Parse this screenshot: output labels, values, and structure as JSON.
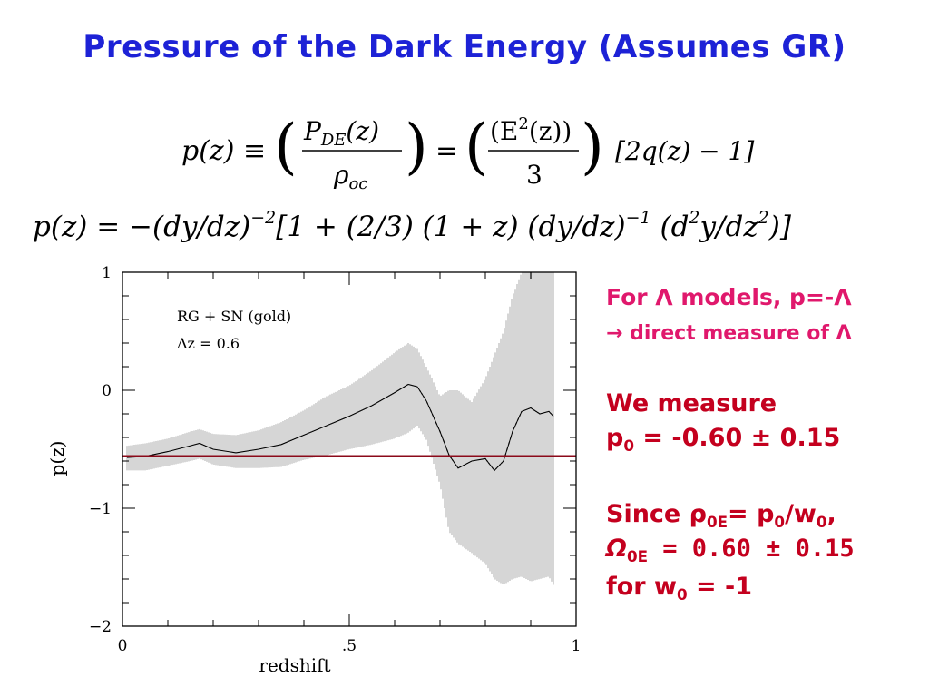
{
  "title": "Pressure of the Dark Energy  (Assumes GR)",
  "equations": {
    "eq1": {
      "lhs": "p(z) ≡",
      "frac1_num": "P",
      "frac1_num_sub": "DE",
      "frac1_num_tail": "(z)",
      "frac1_den": "ρ",
      "frac1_den_sub": "oc",
      "eq": "=",
      "frac2_num": "(E",
      "frac2_num_sup": "2",
      "frac2_num_tail": "(z))",
      "frac2_den": "3",
      "tail": "[2q(z) − 1]"
    },
    "eq2": {
      "part1": "p(z) = −(dy/dz)",
      "sup1": "−2",
      "part2": "[1 + (2/3)  (1 + z)  (dy/dz)",
      "sup2": "−1",
      "part3": "  (d",
      "sup3": "2",
      "part4": "y/dz",
      "sup4": "2",
      "part5": ")]"
    }
  },
  "side_text": {
    "line1": "For Λ models, p=-Λ",
    "line2": "→ direct measure of Λ",
    "measure_label": "We measure",
    "p0_sym": "p",
    "p0_sub": "0",
    "p0_value": " = -0.60 ± 0.15",
    "since_prefix": "Since ρ",
    "since_sub1": "0E",
    "since_mid": "= p",
    "since_sub2": "0",
    "since_mid2": "/w",
    "since_sub3": "0",
    "since_end": ",",
    "omega_sym": "Ω",
    "omega_sub": "0E",
    "omega_value": " = 0.60 ± 0.15",
    "for_prefix": "for w",
    "for_sub": "0",
    "for_value": " = -1"
  },
  "colors": {
    "title": "#1d22d6",
    "pink": "#e0186c",
    "dark_red": "#c4001e",
    "hline": "#8b0a1a",
    "band": "#9a9a9a",
    "curve": "#000000"
  },
  "chart_data": {
    "type": "line",
    "xlabel": "redshift",
    "ylabel": "p(z)",
    "xlim": [
      0,
      1
    ],
    "ylim": [
      -2,
      1
    ],
    "x_tick_labels": [
      "0",
      ".5",
      "1"
    ],
    "y_tick_labels": [
      "1",
      "0",
      "−1",
      "−2"
    ],
    "annotations": [
      "RG + SN (gold)",
      "Δz  =  0.6"
    ],
    "grid": false,
    "series": [
      {
        "role": "central curve",
        "x": [
          0.01,
          0.05,
          0.1,
          0.15,
          0.17,
          0.2,
          0.25,
          0.3,
          0.35,
          0.4,
          0.45,
          0.5,
          0.55,
          0.6,
          0.63,
          0.65,
          0.67,
          0.7,
          0.72,
          0.74,
          0.77,
          0.8,
          0.82,
          0.84,
          0.86,
          0.88,
          0.9,
          0.92,
          0.94,
          0.95
        ],
        "y": [
          -0.57,
          -0.56,
          -0.52,
          -0.47,
          -0.45,
          -0.5,
          -0.53,
          -0.5,
          -0.46,
          -0.38,
          -0.3,
          -0.22,
          -0.13,
          -0.02,
          0.05,
          0.03,
          -0.09,
          -0.35,
          -0.55,
          -0.66,
          -0.6,
          -0.58,
          -0.68,
          -0.6,
          -0.35,
          -0.18,
          -0.15,
          -0.2,
          -0.18,
          -0.22
        ]
      }
    ],
    "error_band": {
      "x": [
        0.01,
        0.05,
        0.1,
        0.15,
        0.17,
        0.2,
        0.25,
        0.3,
        0.35,
        0.4,
        0.45,
        0.5,
        0.55,
        0.6,
        0.63,
        0.65,
        0.67,
        0.7,
        0.72,
        0.74,
        0.77,
        0.8,
        0.82,
        0.84,
        0.86,
        0.88,
        0.9,
        0.92,
        0.94,
        0.95
      ],
      "upper": [
        -0.47,
        -0.45,
        -0.41,
        -0.35,
        -0.33,
        -0.37,
        -0.38,
        -0.34,
        -0.27,
        -0.17,
        -0.05,
        0.04,
        0.17,
        0.32,
        0.4,
        0.35,
        0.2,
        -0.05,
        0.0,
        0.0,
        -0.1,
        0.1,
        0.3,
        0.5,
        0.8,
        1.0,
        1.0,
        1.0,
        1.0,
        1.0
      ],
      "lower": [
        -0.68,
        -0.68,
        -0.64,
        -0.6,
        -0.58,
        -0.63,
        -0.66,
        -0.66,
        -0.65,
        -0.59,
        -0.55,
        -0.5,
        -0.46,
        -0.41,
        -0.36,
        -0.3,
        -0.42,
        -0.8,
        -1.2,
        -1.3,
        -1.38,
        -1.47,
        -1.6,
        -1.65,
        -1.6,
        -1.58,
        -1.62,
        -1.6,
        -1.58,
        -1.65
      ]
    },
    "reference_line": {
      "y": -0.56,
      "x_range": [
        0,
        1
      ]
    }
  }
}
